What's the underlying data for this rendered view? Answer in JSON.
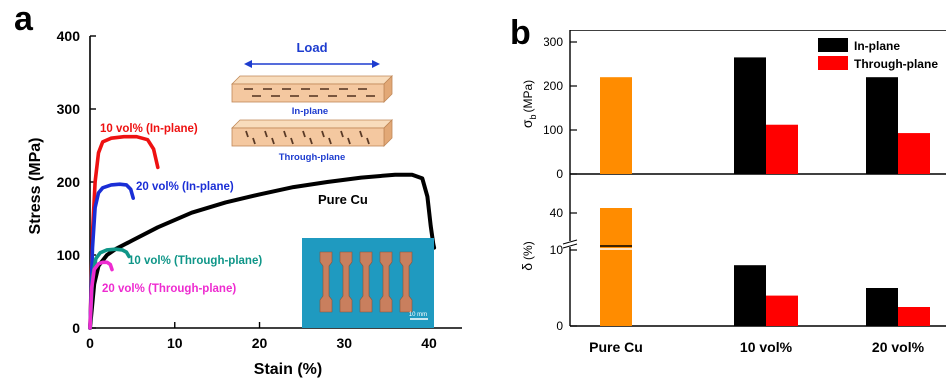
{
  "colors": {
    "pure_cu": "#000000",
    "in_plane_10": "#ee1111",
    "in_plane_20": "#1a2ed6",
    "through_10": "#0f9688",
    "through_20": "#ee2bd0",
    "bar_pure": "#ff8c00",
    "bar_in_plane": "#000000",
    "bar_through": "#ff0000",
    "specimen_bg": "#1f9ac0",
    "specimen": "#c97f5e",
    "block": "#f4c8a0",
    "block_edge": "#c08858",
    "arrow": "#1d3ccf"
  },
  "chart_data": [
    {
      "panel": "a",
      "type": "line",
      "xlabel": "Stain (%)",
      "ylabel": "Stress (MPa)",
      "xlim": [
        0,
        42
      ],
      "ylim": [
        0,
        400
      ],
      "xticks": [
        0,
        10,
        20,
        30,
        40
      ],
      "yticks": [
        0,
        100,
        200,
        300,
        400
      ],
      "grid": false,
      "series": [
        {
          "name": "Pure Cu",
          "label": "Pure Cu",
          "x": [
            0,
            0.5,
            1,
            2,
            3,
            5,
            8,
            12,
            16,
            20,
            24,
            28,
            32,
            36,
            38,
            39.2,
            39.8,
            40.2,
            40.5,
            40.6
          ],
          "y": [
            0,
            60,
            85,
            100,
            108,
            120,
            138,
            158,
            172,
            183,
            193,
            200,
            206,
            210,
            210,
            205,
            180,
            140,
            115,
            110
          ]
        },
        {
          "name": "10 vol% (In-plane)",
          "label": "10 vol% (In-plane)",
          "x": [
            0,
            0.3,
            0.6,
            1,
            1.5,
            2.5,
            4,
            5.5,
            6.8,
            7.5,
            8
          ],
          "y": [
            0,
            130,
            200,
            240,
            255,
            260,
            262,
            262,
            258,
            245,
            220
          ]
        },
        {
          "name": "20 vol% (In-plane)",
          "label": "20 vol% (In-plane)",
          "x": [
            0,
            0.3,
            0.6,
            1,
            1.5,
            2.5,
            3.5,
            4.3,
            4.8,
            5.1
          ],
          "y": [
            0,
            110,
            165,
            185,
            192,
            196,
            197,
            196,
            190,
            178
          ]
        },
        {
          "name": "10 vol% (Through-plane)",
          "label": "10 vol% (Through-plane)",
          "x": [
            0,
            0.3,
            0.7,
            1.2,
            2,
            3,
            3.8,
            4.3,
            4.6
          ],
          "y": [
            0,
            70,
            95,
            103,
            107,
            108,
            107,
            104,
            98
          ]
        },
        {
          "name": "20 vol% (Through-plane)",
          "label": "20 vol% (Through-plane)",
          "x": [
            0,
            0.2,
            0.5,
            1,
            1.5,
            2,
            2.4,
            2.6
          ],
          "y": [
            0,
            55,
            80,
            88,
            90,
            90,
            87,
            80
          ]
        }
      ],
      "annotations": {
        "load": "Load",
        "in_plane": "In-plane",
        "through_plane": "Through-plane",
        "scale_bar": "10 mm"
      }
    },
    {
      "panel": "b-top",
      "type": "bar",
      "ylabel": "σ_b (MPa)",
      "ylabel_main": "σ",
      "ylabel_sub": "b",
      "ylabel_unit": "(MPa)",
      "ylim": [
        0,
        340
      ],
      "yticks": [
        0,
        100,
        200,
        300
      ],
      "categories": [
        "Pure Cu",
        "10 vol%",
        "20 vol%"
      ],
      "series": [
        {
          "name": "Pure Cu",
          "values": [
            220,
            null,
            null
          ]
        },
        {
          "name": "In-plane",
          "values": [
            null,
            265,
            220
          ]
        },
        {
          "name": "Through-plane",
          "values": [
            null,
            112,
            93
          ]
        }
      ],
      "legend": [
        "In-plane",
        "Through-plane"
      ],
      "legend_position": "top-right"
    },
    {
      "panel": "b-bottom",
      "type": "bar",
      "ylabel": "δ (%)",
      "ylabel_main": "δ",
      "ylabel_unit": "(%)",
      "ylim": [
        0,
        20
      ],
      "yticks": [
        0,
        10,
        40
      ],
      "axis_break": true,
      "categories": [
        "Pure Cu",
        "10 vol%",
        "20 vol%"
      ],
      "series": [
        {
          "name": "Pure Cu",
          "values": [
            41,
            null,
            null
          ]
        },
        {
          "name": "In-plane",
          "values": [
            null,
            8,
            5
          ]
        },
        {
          "name": "Through-plane",
          "values": [
            null,
            4,
            2.5
          ]
        }
      ]
    }
  ],
  "panel_labels": {
    "a": "a",
    "b": "b"
  }
}
